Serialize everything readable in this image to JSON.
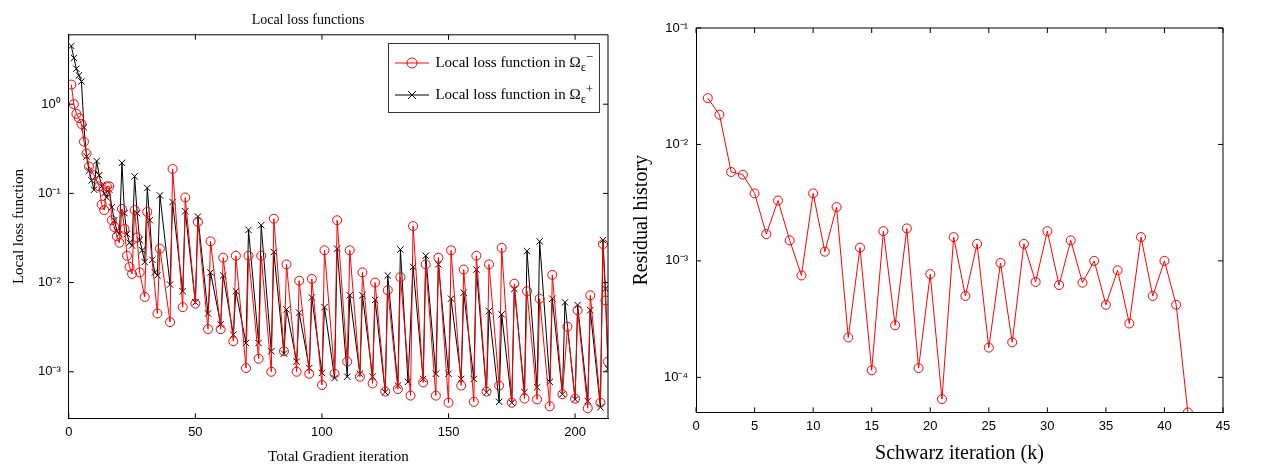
{
  "chart_data": [
    {
      "type": "line",
      "title": "Local loss functions",
      "xlabel": "Total Gradient iteration",
      "ylabel": "Local loss function",
      "log": "y",
      "legend": "top right",
      "xlim": [
        0,
        213
      ],
      "xticks": [
        0,
        50,
        100,
        150,
        200
      ],
      "ylim": [
        0.0003,
        6
      ],
      "yticks": [
        {
          "value": 0.001,
          "label": "10⁻³"
        },
        {
          "value": 0.01,
          "label": "10⁻²"
        },
        {
          "value": 0.1,
          "label": "10⁻¹"
        },
        {
          "value": 1,
          "label": "10⁰"
        }
      ],
      "line_style": "solid",
      "series": [
        {
          "name": "Local loss function in Ω$_{ε}$$^{−}$",
          "color": "#ff0000",
          "marker": "circle",
          "x": [
            1,
            2,
            3,
            4,
            5,
            6,
            7,
            8,
            10,
            12,
            13,
            14,
            15,
            16,
            17,
            18,
            19,
            20,
            21,
            22,
            23,
            24,
            25,
            26,
            27,
            28,
            30,
            31,
            35,
            36,
            40,
            41,
            45,
            46,
            50,
            51,
            55,
            56,
            60,
            61,
            65,
            66,
            70,
            71,
            75,
            76,
            80,
            81,
            85,
            86,
            90,
            91,
            95,
            96,
            100,
            101,
            105,
            106,
            110,
            111,
            115,
            116,
            120,
            121,
            125,
            126,
            130,
            131,
            135,
            136,
            140,
            141,
            145,
            146,
            150,
            151,
            155,
            156,
            160,
            161,
            165,
            166,
            170,
            171,
            175,
            176,
            180,
            181,
            185,
            186,
            190,
            191,
            195,
            197,
            200,
            201,
            205,
            206,
            210,
            211,
            212,
            213
          ],
          "values": [
            1.66,
            1.0,
            0.78,
            0.7,
            0.6,
            0.38,
            0.28,
            0.2,
            0.16,
            0.12,
            0.075,
            0.065,
            0.12,
            0.12,
            0.05,
            0.042,
            0.033,
            0.028,
            0.067,
            0.04,
            0.02,
            0.015,
            0.0125,
            0.065,
            0.032,
            0.013,
            0.0069,
            0.062,
            0.0045,
            0.024,
            0.0036,
            0.188,
            0.0053,
            0.09,
            0.0058,
            0.048,
            0.003,
            0.029,
            0.003,
            0.019,
            0.0022,
            0.02,
            0.0011,
            0.02,
            0.0014,
            0.02,
            0.001,
            0.052,
            0.0017,
            0.016,
            0.001,
            0.0105,
            0.00095,
            0.011,
            0.00071,
            0.023,
            0.00095,
            0.05,
            0.0013,
            0.023,
            0.00088,
            0.013,
            0.00074,
            0.01,
            0.0006,
            0.0082,
            0.00064,
            0.0115,
            0.00054,
            0.043,
            0.00076,
            0.016,
            0.00054,
            0.019,
            0.00045,
            0.023,
            0.0007,
            0.014,
            0.00046,
            0.02,
            0.0006,
            0.016,
            0.0007,
            0.0245,
            0.00045,
            0.0097,
            0.0005,
            0.008,
            0.00049,
            0.0066,
            0.00041,
            0.0122,
            0.00056,
            0.0032,
            0.0005,
            0.0049,
            0.00039,
            0.0072,
            0.00045,
            0.027,
            0.0063,
            0.0013
          ]
        },
        {
          "name": "Local loss function in Ω$_{ε}$$^{+}$",
          "color": "#000000",
          "marker": "cross",
          "x": [
            1,
            2,
            3,
            4,
            5,
            6,
            7,
            8,
            9,
            10,
            11,
            12,
            13,
            14,
            15,
            16,
            17,
            18,
            19,
            20,
            21,
            22,
            23,
            24,
            25,
            26,
            27,
            28,
            29,
            30,
            31,
            32,
            33,
            34,
            35,
            36,
            40,
            41,
            45,
            46,
            50,
            51,
            55,
            56,
            60,
            61,
            65,
            66,
            70,
            71,
            75,
            76,
            80,
            81,
            85,
            86,
            90,
            91,
            95,
            96,
            100,
            101,
            105,
            106,
            110,
            111,
            115,
            116,
            120,
            121,
            125,
            126,
            130,
            131,
            134,
            136,
            140,
            141,
            145,
            146,
            150,
            151,
            155,
            156,
            160,
            161,
            165,
            166,
            170,
            171,
            175,
            176,
            180,
            181,
            185,
            186,
            190,
            191,
            195,
            196,
            200,
            201,
            205,
            206,
            210,
            211,
            212,
            213
          ],
          "values": [
            4.5,
            3.3,
            2.5,
            2.1,
            1.8,
            0.55,
            0.26,
            0.18,
            0.14,
            0.11,
            0.23,
            0.16,
            0.12,
            0.1,
            0.09,
            0.11,
            0.07,
            0.05,
            0.038,
            0.035,
            0.22,
            0.06,
            0.035,
            0.028,
            0.026,
            0.155,
            0.06,
            0.03,
            0.023,
            0.017,
            0.115,
            0.05,
            0.018,
            0.013,
            0.012,
            0.095,
            0.0095,
            0.08,
            0.008,
            0.063,
            0.006,
            0.055,
            0.0045,
            0.013,
            0.0034,
            0.012,
            0.0026,
            0.008,
            0.0021,
            0.039,
            0.0021,
            0.044,
            0.0017,
            0.022,
            0.0016,
            0.005,
            0.0013,
            0.0046,
            0.0011,
            0.0068,
            0.00097,
            0.0053,
            0.00085,
            0.024,
            0.00088,
            0.0072,
            0.00095,
            0.0072,
            0.00088,
            0.0064,
            0.00059,
            0.012,
            0.0007,
            0.0235,
            0.00077,
            0.015,
            0.00083,
            0.02,
            0.00095,
            0.016,
            0.00095,
            0.0066,
            0.00083,
            0.0077,
            0.00083,
            0.014,
            0.00059,
            0.0048,
            0.00046,
            0.0044,
            0.00045,
            0.0085,
            0.00059,
            0.0225,
            0.00067,
            0.029,
            0.00077,
            0.0066,
            0.00056,
            0.006,
            0.00049,
            0.0056,
            0.00047,
            0.0049,
            0.0004,
            0.03,
            0.0085,
            0.00108
          ]
        }
      ]
    },
    {
      "type": "line",
      "xlabel": "Schwarz iteration (k)",
      "ylabel": "Residual history",
      "log": "y",
      "marker": "circle",
      "line_style": "solid",
      "xlim": [
        0,
        45
      ],
      "xticks": [
        0,
        5,
        10,
        15,
        20,
        25,
        30,
        35,
        40,
        45
      ],
      "ylim": [
        5e-05,
        0.1
      ],
      "yticks": [
        {
          "value": 0.0001,
          "label": "10⁻⁴"
        },
        {
          "value": 0.001,
          "label": "10⁻³"
        },
        {
          "value": 0.01,
          "label": "10⁻²"
        },
        {
          "value": 0.1,
          "label": "10⁻¹"
        }
      ],
      "x": [
        1,
        2,
        3,
        4,
        5,
        6,
        7,
        8,
        9,
        10,
        11,
        12,
        13,
        14,
        15,
        16,
        17,
        18,
        19,
        20,
        21,
        22,
        23,
        24,
        25,
        26,
        27,
        28,
        29,
        30,
        31,
        32,
        33,
        34,
        35,
        36,
        37,
        38,
        39,
        40,
        41,
        42
      ],
      "series": [
        {
          "color": "#ff0000",
          "values": [
            0.025,
            0.018,
            0.0058,
            0.0055,
            0.0038,
            0.0017,
            0.0033,
            0.0015,
            0.00075,
            0.0038,
            0.0012,
            0.0029,
            0.00022,
            0.0013,
            0.000115,
            0.0018,
            0.00028,
            0.0019,
            0.00012,
            0.00077,
            6.5e-05,
            0.0016,
            0.0005,
            0.0014,
            0.00018,
            0.00096,
            0.0002,
            0.0014,
            0.00066,
            0.0018,
            0.00062,
            0.0015,
            0.00065,
            0.001,
            0.00042,
            0.00083,
            0.00029,
            0.0016,
            0.0005,
            0.001,
            0.00042,
            5e-05
          ]
        }
      ]
    }
  ]
}
